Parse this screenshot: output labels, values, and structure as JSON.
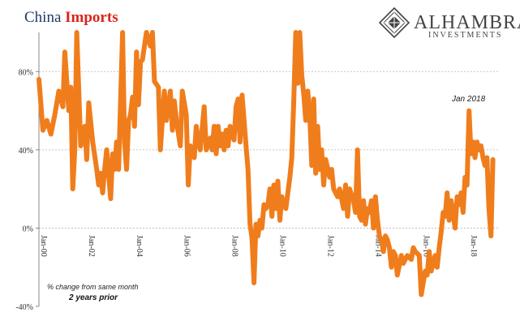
{
  "chart_data": {
    "type": "line",
    "title_part1": "China ",
    "title_part2": "Imports",
    "xlabel": "",
    "ylabel": "",
    "x_start": "Jan-00",
    "x_end": "Apr-19",
    "ylim": [
      -40,
      100
    ],
    "yticks": [
      {
        "value": 80,
        "label": "80%"
      },
      {
        "value": 40,
        "label": "40%"
      },
      {
        "value": 0,
        "label": "0%"
      },
      {
        "value": -40,
        "label": "-40%"
      }
    ],
    "xticks": [
      "Jan-00",
      "Jan-02",
      "Jan-04",
      "Jan-06",
      "Jan-08",
      "Jan-10",
      "Jan-12",
      "Jan-14",
      "Jan-16",
      "Jan-18"
    ],
    "grid": "horizontal dashed",
    "line_color": "#f07d1c",
    "series": [
      {
        "points": [
          [
            "Jan-00",
            76
          ],
          [
            "Mar-00",
            50
          ],
          [
            "May-00",
            55
          ],
          [
            "Jul-00",
            48
          ],
          [
            "Sep-00",
            58
          ],
          [
            "Nov-00",
            70
          ],
          [
            "Jan-01",
            62
          ],
          [
            "Feb-01",
            90
          ],
          [
            "Apr-01",
            60
          ],
          [
            "May-01",
            72
          ],
          [
            "Jun-01",
            20
          ],
          [
            "Jul-01",
            40
          ],
          [
            "Aug-01",
            100
          ],
          [
            "Oct-01",
            42
          ],
          [
            "Dec-01",
            52
          ],
          [
            "Jan-02",
            35
          ],
          [
            "Feb-02",
            64
          ],
          [
            "Apr-02",
            44
          ],
          [
            "Jun-02",
            30
          ],
          [
            "Jul-02",
            22
          ],
          [
            "Aug-02",
            28
          ],
          [
            "Sep-02",
            18
          ],
          [
            "Oct-02",
            30
          ],
          [
            "Nov-02",
            40
          ],
          [
            "Jan-03",
            15
          ],
          [
            "Feb-03",
            38
          ],
          [
            "Mar-03",
            30
          ],
          [
            "Apr-03",
            44
          ],
          [
            "May-03",
            30
          ],
          [
            "Jul-03",
            100
          ],
          [
            "Aug-03",
            44
          ],
          [
            "Sep-03",
            30
          ],
          [
            "Oct-03",
            55
          ],
          [
            "Nov-03",
            58
          ],
          [
            "Dec-03",
            67
          ],
          [
            "Jan-04",
            52
          ],
          [
            "Feb-04",
            90
          ],
          [
            "Mar-04",
            63
          ],
          [
            "Apr-04",
            85
          ],
          [
            "May-04",
            86
          ],
          [
            "Jul-04",
            100
          ],
          [
            "Sep-04",
            93
          ],
          [
            "Oct-04",
            100
          ],
          [
            "Nov-04",
            75
          ],
          [
            "Jan-05",
            72
          ],
          [
            "Feb-05",
            40
          ],
          [
            "Apr-05",
            70
          ],
          [
            "May-05",
            55
          ],
          [
            "Jul-05",
            70
          ],
          [
            "Aug-05",
            50
          ],
          [
            "Sep-05",
            65
          ],
          [
            "Oct-05",
            55
          ],
          [
            "Dec-05",
            42
          ],
          [
            "Jan-06",
            70
          ],
          [
            "Mar-06",
            58
          ],
          [
            "Apr-06",
            22
          ],
          [
            "May-06",
            42
          ],
          [
            "Jul-06",
            36
          ],
          [
            "Aug-06",
            52
          ],
          [
            "Sep-06",
            45
          ],
          [
            "Oct-06",
            40
          ],
          [
            "Dec-06",
            62
          ],
          [
            "Jan-07",
            40
          ],
          [
            "Mar-07",
            46
          ],
          [
            "Apr-07",
            40
          ],
          [
            "May-07",
            52
          ],
          [
            "Jun-07",
            38
          ],
          [
            "Jul-07",
            52
          ],
          [
            "Aug-07",
            42
          ],
          [
            "Sep-07",
            48
          ],
          [
            "Oct-07",
            40
          ],
          [
            "Nov-07",
            50
          ],
          [
            "Dec-07",
            42
          ],
          [
            "Jan-08",
            52
          ],
          [
            "Mar-08",
            45
          ],
          [
            "Apr-08",
            62
          ],
          [
            "May-08",
            66
          ],
          [
            "Jun-08",
            44
          ],
          [
            "Jul-08",
            68
          ],
          [
            "Sep-08",
            42
          ],
          [
            "Oct-08",
            30
          ],
          [
            "Nov-08",
            2
          ],
          [
            "Dec-08",
            -5
          ],
          [
            "Jan-09",
            -28
          ],
          [
            "Feb-09",
            2
          ],
          [
            "Mar-09",
            -4
          ],
          [
            "Apr-09",
            4
          ],
          [
            "May-09",
            0
          ],
          [
            "Jun-09",
            12
          ],
          [
            "Jul-09",
            10
          ],
          [
            "Aug-09",
            12
          ],
          [
            "Sep-09",
            20
          ],
          [
            "Oct-09",
            6
          ],
          [
            "Nov-09",
            22
          ],
          [
            "Dec-09",
            10
          ],
          [
            "Jan-10",
            24
          ],
          [
            "Feb-10",
            4
          ],
          [
            "Mar-10",
            16
          ],
          [
            "Apr-10",
            12
          ],
          [
            "May-10",
            10
          ],
          [
            "Jun-10",
            18
          ],
          [
            "Jul-10",
            26
          ],
          [
            "Aug-10",
            36
          ],
          [
            "Sep-10",
            66
          ],
          [
            "Oct-10",
            100
          ],
          [
            "Nov-10",
            74
          ],
          [
            "Dec-10",
            100
          ],
          [
            "Jan-11",
            78
          ],
          [
            "Feb-11",
            68
          ],
          [
            "Mar-11",
            55
          ],
          [
            "Apr-11",
            70
          ],
          [
            "May-11",
            58
          ],
          [
            "Jun-11",
            32
          ],
          [
            "Jul-11",
            66
          ],
          [
            "Aug-11",
            28
          ],
          [
            "Sep-11",
            52
          ],
          [
            "Oct-11",
            30
          ],
          [
            "Nov-11",
            40
          ],
          [
            "Dec-11",
            22
          ],
          [
            "Jan-12",
            35
          ],
          [
            "Mar-12",
            26
          ],
          [
            "Apr-12",
            30
          ],
          [
            "May-12",
            20
          ],
          [
            "Jul-12",
            16
          ],
          [
            "Aug-12",
            20
          ],
          [
            "Oct-12",
            10
          ],
          [
            "Nov-12",
            22
          ],
          [
            "Dec-12",
            6
          ],
          [
            "Jan-13",
            20
          ],
          [
            "Mar-13",
            14
          ],
          [
            "Apr-13",
            8
          ],
          [
            "May-13",
            40
          ],
          [
            "Jun-13",
            6
          ],
          [
            "Jul-13",
            4
          ],
          [
            "Aug-13",
            14
          ],
          [
            "Sep-13",
            2
          ],
          [
            "Oct-13",
            10
          ],
          [
            "Nov-13",
            8
          ],
          [
            "Dec-13",
            14
          ],
          [
            "Jan-14",
            0
          ],
          [
            "Feb-14",
            16
          ],
          [
            "Mar-14",
            4
          ],
          [
            "Apr-14",
            -4
          ],
          [
            "May-14",
            -6
          ],
          [
            "Jun-14",
            -12
          ],
          [
            "Jul-14",
            -4
          ],
          [
            "Aug-14",
            -6
          ],
          [
            "Sep-14",
            -10
          ],
          [
            "Oct-14",
            -20
          ],
          [
            "Nov-14",
            -12
          ],
          [
            "Dec-14",
            -14
          ],
          [
            "Jan-15",
            -24
          ],
          [
            "Mar-15",
            -14
          ],
          [
            "Apr-15",
            -18
          ],
          [
            "Jun-15",
            -14
          ],
          [
            "Aug-15",
            -16
          ],
          [
            "Sep-15",
            -10
          ],
          [
            "Oct-15",
            -12
          ],
          [
            "Dec-15",
            -14
          ],
          [
            "Jan-16",
            -34
          ],
          [
            "Feb-16",
            -28
          ],
          [
            "Mar-16",
            -22
          ],
          [
            "Apr-16",
            -24
          ],
          [
            "May-16",
            -12
          ],
          [
            "Jun-16",
            -22
          ],
          [
            "Jul-16",
            -18
          ],
          [
            "Aug-16",
            -14
          ],
          [
            "Sep-16",
            -20
          ],
          [
            "Oct-16",
            -10
          ],
          [
            "Nov-16",
            -2
          ],
          [
            "Dec-16",
            8
          ],
          [
            "Jan-17",
            6
          ],
          [
            "Feb-17",
            18
          ],
          [
            "Mar-17",
            4
          ],
          [
            "Apr-17",
            14
          ],
          [
            "Jun-17",
            0
          ],
          [
            "Jul-17",
            16
          ],
          [
            "Aug-17",
            12
          ],
          [
            "Sep-17",
            18
          ],
          [
            "Oct-17",
            8
          ],
          [
            "Nov-17",
            26
          ],
          [
            "Dec-17",
            22
          ],
          [
            "Jan-18",
            60
          ],
          [
            "Feb-18",
            38
          ],
          [
            "Mar-18",
            44
          ],
          [
            "Apr-18",
            36
          ],
          [
            "May-18",
            44
          ],
          [
            "Jun-18",
            40
          ],
          [
            "Jul-18",
            42
          ],
          [
            "Aug-18",
            36
          ],
          [
            "Sep-18",
            32
          ],
          [
            "Oct-18",
            36
          ],
          [
            "Nov-18",
            10
          ],
          [
            "Dec-18",
            -4
          ],
          [
            "Jan-19",
            35
          ]
        ]
      }
    ],
    "annotations": {
      "peak_label": "Jan 2018",
      "note_line1": "% change from same month",
      "note_line2": "2 years prior"
    }
  },
  "logo": {
    "name": "ALHAMBRA",
    "sub": "INVESTMENTS"
  }
}
